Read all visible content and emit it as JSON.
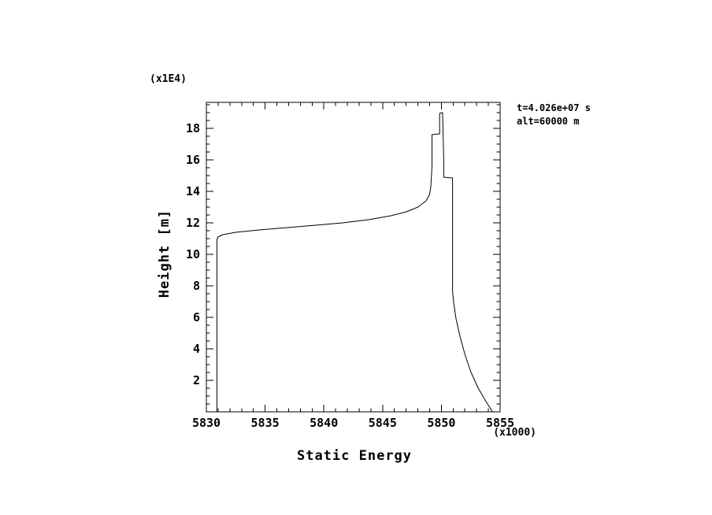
{
  "page": {
    "background": "#ffffff",
    "foreground": "#000000"
  },
  "chart_data": {
    "type": "line",
    "title": "",
    "xlabel": "Static Energy",
    "ylabel": "Height [m]",
    "x_scale_note": "(x1000)",
    "y_scale_note": "(x1E4)",
    "annotations": [
      "t=4.026e+07 s",
      "alt=60000 m"
    ],
    "x_axis": {
      "min": 5830,
      "max": 5855,
      "major_ticks": [
        5830,
        5835,
        5840,
        5845,
        5850,
        5855
      ],
      "minor_step": 1
    },
    "y_axis": {
      "min": 0,
      "max": 19.65,
      "major_ticks": [
        2,
        4,
        6,
        8,
        10,
        12,
        14,
        16,
        18
      ],
      "minor_step": 0.5
    },
    "grid": false,
    "legend": false,
    "series": [
      {
        "name": "static-energy-profile",
        "color": "#000000",
        "points": [
          [
            5830.9,
            0.0
          ],
          [
            5830.9,
            10.95
          ],
          [
            5831.0,
            11.1
          ],
          [
            5831.4,
            11.25
          ],
          [
            5832.5,
            11.4
          ],
          [
            5834.5,
            11.55
          ],
          [
            5836.9,
            11.7
          ],
          [
            5839.3,
            11.85
          ],
          [
            5841.6,
            12.0
          ],
          [
            5843.8,
            12.2
          ],
          [
            5845.7,
            12.45
          ],
          [
            5847.0,
            12.7
          ],
          [
            5848.0,
            13.0
          ],
          [
            5848.7,
            13.4
          ],
          [
            5849.0,
            13.8
          ],
          [
            5849.1,
            14.3
          ],
          [
            5849.15,
            14.9
          ],
          [
            5849.2,
            15.6
          ],
          [
            5849.2,
            16.3
          ],
          [
            5849.2,
            17.0
          ],
          [
            5849.2,
            17.6
          ],
          [
            5849.85,
            17.65
          ],
          [
            5849.85,
            18.95
          ],
          [
            5850.1,
            19.0
          ],
          [
            5850.15,
            17.5
          ],
          [
            5850.2,
            16.0
          ],
          [
            5850.2,
            14.9
          ],
          [
            5850.95,
            14.85
          ],
          [
            5850.95,
            13.0
          ],
          [
            5850.95,
            11.0
          ],
          [
            5850.95,
            9.0
          ],
          [
            5850.95,
            7.65
          ],
          [
            5851.05,
            6.9
          ],
          [
            5851.25,
            5.9
          ],
          [
            5851.6,
            4.75
          ],
          [
            5852.0,
            3.65
          ],
          [
            5852.5,
            2.55
          ],
          [
            5853.1,
            1.55
          ],
          [
            5853.8,
            0.65
          ],
          [
            5854.35,
            0.0
          ]
        ]
      }
    ]
  }
}
